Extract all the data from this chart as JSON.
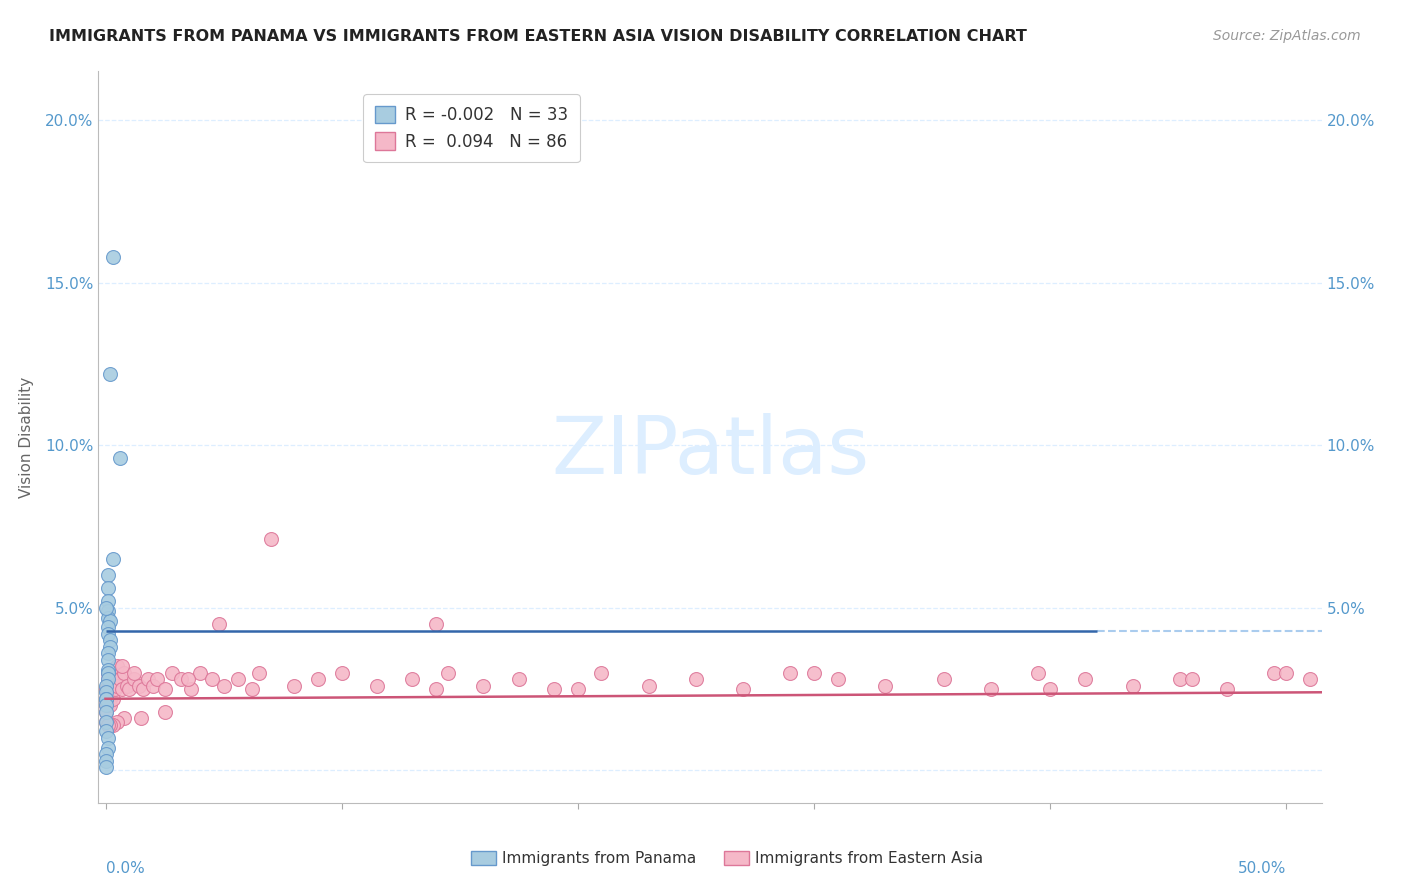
{
  "title": "IMMIGRANTS FROM PANAMA VS IMMIGRANTS FROM EASTERN ASIA VISION DISABILITY CORRELATION CHART",
  "source": "Source: ZipAtlas.com",
  "ylabel": "Vision Disability",
  "yticks": [
    0.0,
    0.05,
    0.1,
    0.15,
    0.2
  ],
  "ytick_labels": [
    "",
    "5.0%",
    "10.0%",
    "15.0%",
    "20.0%"
  ],
  "xlim": [
    -0.003,
    0.515
  ],
  "ylim": [
    -0.01,
    0.215
  ],
  "color_panama": "#a8cce0",
  "color_panama_edge": "#6699cc",
  "color_eastern_asia": "#f5b8c8",
  "color_eastern_asia_edge": "#dd7799",
  "color_panama_trend": "#3366aa",
  "color_eastern_asia_trend": "#cc5577",
  "color_dashed": "#aaccee",
  "color_axis_labels": "#5599cc",
  "color_title": "#222222",
  "color_source": "#999999",
  "color_ylabel": "#666666",
  "color_grid": "#ddeeff",
  "color_watermark": "#ddeeff",
  "legend_line1": "R = -0.002   N = 33",
  "legend_line2": "R =  0.094   N = 86",
  "panama_trendline_x": [
    0.0,
    0.42
  ],
  "panama_trendline_y": [
    0.043,
    0.043
  ],
  "dashed_line_x": [
    0.42,
    0.515
  ],
  "dashed_line_y": [
    0.043,
    0.043
  ],
  "ea_trendline_x": [
    0.0,
    0.515
  ],
  "ea_trendline_y": [
    0.022,
    0.024
  ],
  "panama_x": [
    0.003,
    0.002,
    0.006,
    0.003,
    0.001,
    0.001,
    0.001,
    0.001,
    0.001,
    0.002,
    0.001,
    0.001,
    0.002,
    0.002,
    0.001,
    0.001,
    0.001,
    0.001,
    0.001,
    0.0,
    0.0,
    0.0,
    0.0,
    0.0,
    0.0,
    0.0,
    0.0,
    0.001,
    0.001,
    0.0,
    0.0,
    0.0,
    0.0
  ],
  "panama_y": [
    0.158,
    0.122,
    0.096,
    0.065,
    0.06,
    0.056,
    0.052,
    0.049,
    0.047,
    0.046,
    0.044,
    0.042,
    0.04,
    0.038,
    0.036,
    0.034,
    0.031,
    0.03,
    0.028,
    0.026,
    0.024,
    0.022,
    0.022,
    0.02,
    0.018,
    0.015,
    0.012,
    0.01,
    0.007,
    0.005,
    0.003,
    0.001,
    0.05
  ],
  "eastern_asia_x": [
    0.0,
    0.0,
    0.0,
    0.0,
    0.0,
    0.001,
    0.001,
    0.001,
    0.001,
    0.001,
    0.002,
    0.002,
    0.002,
    0.002,
    0.003,
    0.003,
    0.003,
    0.004,
    0.004,
    0.005,
    0.005,
    0.006,
    0.007,
    0.008,
    0.009,
    0.01,
    0.012,
    0.014,
    0.016,
    0.018,
    0.02,
    0.022,
    0.025,
    0.028,
    0.032,
    0.036,
    0.04,
    0.045,
    0.05,
    0.056,
    0.062,
    0.07,
    0.08,
    0.09,
    0.1,
    0.115,
    0.13,
    0.145,
    0.16,
    0.175,
    0.19,
    0.21,
    0.23,
    0.25,
    0.27,
    0.29,
    0.31,
    0.33,
    0.355,
    0.375,
    0.395,
    0.415,
    0.435,
    0.455,
    0.475,
    0.495,
    0.51,
    0.048,
    0.025,
    0.015,
    0.008,
    0.005,
    0.003,
    0.002,
    0.001,
    0.007,
    0.012,
    0.035,
    0.065,
    0.14,
    0.2,
    0.3,
    0.4,
    0.46,
    0.5,
    0.14
  ],
  "eastern_asia_y": [
    0.025,
    0.022,
    0.02,
    0.018,
    0.015,
    0.03,
    0.028,
    0.025,
    0.022,
    0.02,
    0.028,
    0.025,
    0.022,
    0.02,
    0.03,
    0.026,
    0.022,
    0.028,
    0.025,
    0.032,
    0.026,
    0.028,
    0.025,
    0.03,
    0.026,
    0.025,
    0.028,
    0.026,
    0.025,
    0.028,
    0.026,
    0.028,
    0.025,
    0.03,
    0.028,
    0.025,
    0.03,
    0.028,
    0.026,
    0.028,
    0.025,
    0.071,
    0.026,
    0.028,
    0.03,
    0.026,
    0.028,
    0.03,
    0.026,
    0.028,
    0.025,
    0.03,
    0.026,
    0.028,
    0.025,
    0.03,
    0.028,
    0.026,
    0.028,
    0.025,
    0.03,
    0.028,
    0.026,
    0.028,
    0.025,
    0.03,
    0.028,
    0.045,
    0.018,
    0.016,
    0.016,
    0.015,
    0.014,
    0.014,
    0.014,
    0.032,
    0.03,
    0.028,
    0.03,
    0.045,
    0.025,
    0.03,
    0.025,
    0.028,
    0.03,
    0.025
  ]
}
